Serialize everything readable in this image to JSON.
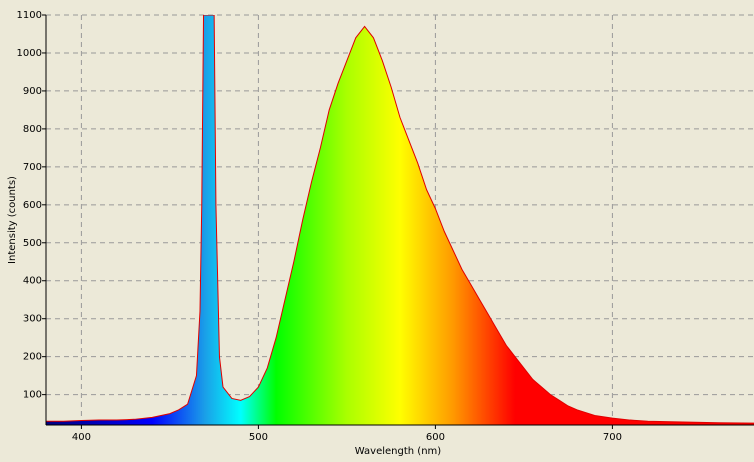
{
  "chart_data": {
    "type": "area",
    "xlabel": "Wavelength (nm)",
    "ylabel": "Intensity (counts)",
    "x": [
      380,
      390,
      400,
      410,
      420,
      430,
      440,
      445,
      450,
      455,
      460,
      465,
      467,
      468,
      469,
      470,
      472,
      474,
      475,
      476,
      478,
      480,
      485,
      490,
      495,
      500,
      505,
      510,
      515,
      520,
      525,
      530,
      535,
      540,
      545,
      550,
      555,
      560,
      565,
      570,
      575,
      580,
      585,
      590,
      595,
      600,
      605,
      610,
      615,
      620,
      625,
      630,
      635,
      640,
      645,
      650,
      655,
      660,
      665,
      670,
      675,
      680,
      690,
      700,
      710,
      720,
      740,
      760,
      780
    ],
    "values": [
      30,
      30,
      32,
      33,
      33,
      35,
      40,
      45,
      50,
      60,
      75,
      150,
      320,
      600,
      1100,
      1100,
      1100,
      1100,
      1100,
      600,
      200,
      120,
      90,
      85,
      95,
      120,
      170,
      250,
      350,
      450,
      560,
      660,
      750,
      850,
      920,
      980,
      1040,
      1070,
      1040,
      980,
      910,
      830,
      770,
      710,
      640,
      590,
      530,
      480,
      430,
      390,
      350,
      310,
      270,
      230,
      200,
      170,
      140,
      120,
      100,
      85,
      70,
      60,
      45,
      38,
      33,
      30,
      28,
      26,
      25
    ],
    "color": "#e00000",
    "xlim": [
      380,
      780
    ],
    "xticks": [
      400,
      500,
      600,
      700
    ],
    "ylim": [
      20,
      1100
    ],
    "yticks": [
      100,
      200,
      300,
      400,
      500,
      600,
      700,
      800,
      900,
      1000,
      1100
    ],
    "grid": true
  }
}
